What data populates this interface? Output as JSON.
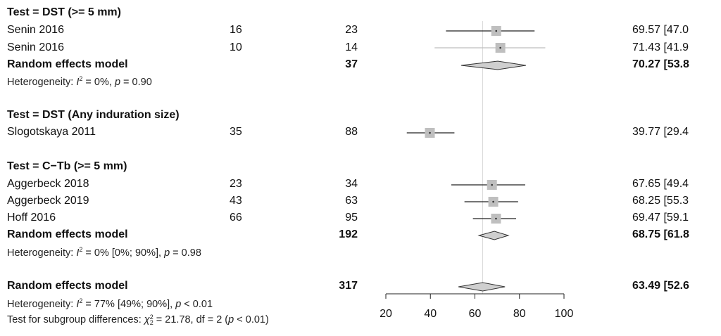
{
  "chart_data": {
    "type": "forest",
    "x_axis": {
      "range": [
        20,
        100
      ],
      "ticks": [
        20,
        40,
        60,
        80,
        100
      ],
      "reference_line": 63.49
    },
    "groups": [
      {
        "heading": "Test = DST (>= 5 mm)",
        "studies": [
          {
            "study": "Senin 2016",
            "events": "16",
            "total": "23",
            "estimate": 69.57,
            "lower": 47.0,
            "upper": 86.8,
            "ci_text": "69.57  [47.0"
          },
          {
            "study": "Senin 2016",
            "events": "10",
            "total": "14",
            "estimate": 71.43,
            "lower": 41.9,
            "upper": 91.6,
            "ci_text": "71.43  [41.9"
          }
        ],
        "model": {
          "label": "Random effects model",
          "total": "37",
          "estimate": 70.27,
          "lower": 53.8,
          "upper": 82.9,
          "ci_text": "70.27  [53.8"
        },
        "heterogeneity": {
          "prefix": "Heterogeneity: ",
          "i2_sym": "I",
          "i2_sup": "2",
          "rest": " = 0%, ",
          "p_sym": "p",
          "p_rest": " = 0.90"
        }
      },
      {
        "heading": "Test = DST (Any induration size)",
        "studies": [
          {
            "study": "Slogotskaya 2011",
            "events": "35",
            "total": "88",
            "estimate": 39.77,
            "lower": 29.4,
            "upper": 50.8,
            "ci_text": "39.77  [29.4"
          }
        ]
      },
      {
        "heading": "Test = C−Tb (>= 5 mm)",
        "studies": [
          {
            "study": "Aggerbeck 2018",
            "events": "23",
            "total": "34",
            "estimate": 67.65,
            "lower": 49.4,
            "upper": 82.6,
            "ci_text": "67.65  [49.4"
          },
          {
            "study": "Aggerbeck 2019",
            "events": "43",
            "total": "63",
            "estimate": 68.25,
            "lower": 55.3,
            "upper": 79.4,
            "ci_text": "68.25  [55.3"
          },
          {
            "study": "Hoff 2016",
            "events": "66",
            "total": "95",
            "estimate": 69.47,
            "lower": 59.1,
            "upper": 78.5,
            "ci_text": "69.47  [59.1"
          }
        ],
        "model": {
          "label": "Random effects model",
          "total": "192",
          "estimate": 68.75,
          "lower": 61.8,
          "upper": 75.0,
          "ci_text": "68.75  [61.8"
        },
        "heterogeneity": {
          "prefix": "Heterogeneity: ",
          "i2_sym": "I",
          "i2_sup": "2",
          "rest": " = 0% [0%; 90%], ",
          "p_sym": "p",
          "p_rest": " = 0.98"
        }
      }
    ],
    "overall": {
      "label": "Random effects model",
      "total": "317",
      "estimate": 63.49,
      "lower": 52.6,
      "upper": 73.5,
      "ci_text": "63.49  [52.6",
      "heterogeneity": {
        "prefix": "Heterogeneity: ",
        "i2_sym": "I",
        "i2_sup": "2",
        "rest": " = 77% [49%; 90%], ",
        "p_sym": "p",
        "p_rest": " < 0.01"
      },
      "subgroup_test": {
        "prefix": "Test for subgroup differences: ",
        "chi_sym": "χ",
        "chi_sup": "2",
        "chi_sub": "2",
        "rest": " = 21.78, df = 2 (",
        "p_sym": "p",
        "p_rest": " < 0.01)"
      }
    }
  }
}
